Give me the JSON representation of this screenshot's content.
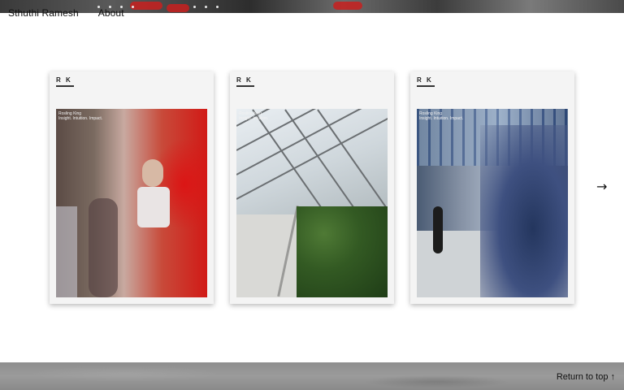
{
  "nav": {
    "name": "Sthuthi Ramesh",
    "about": "About"
  },
  "cards": [
    {
      "monogram": "R K",
      "caption_line1": "Rosling King",
      "caption_line2": "Insight. Intuition. Impact."
    },
    {
      "monogram": "R K",
      "caption_line1": "Rosling King",
      "caption_line2": "Insight. Intuition."
    },
    {
      "monogram": "R K",
      "caption_line1": "Rosling King",
      "caption_line2": "Insight. Intuition. Impact."
    }
  ],
  "carousel": {
    "next_icon": "→"
  },
  "footer": {
    "return_label": "Return to top ↑"
  },
  "colors": {
    "accent_red": "#d11a16",
    "footer_gray": "#939393",
    "card_bg": "#f4f4f4"
  }
}
